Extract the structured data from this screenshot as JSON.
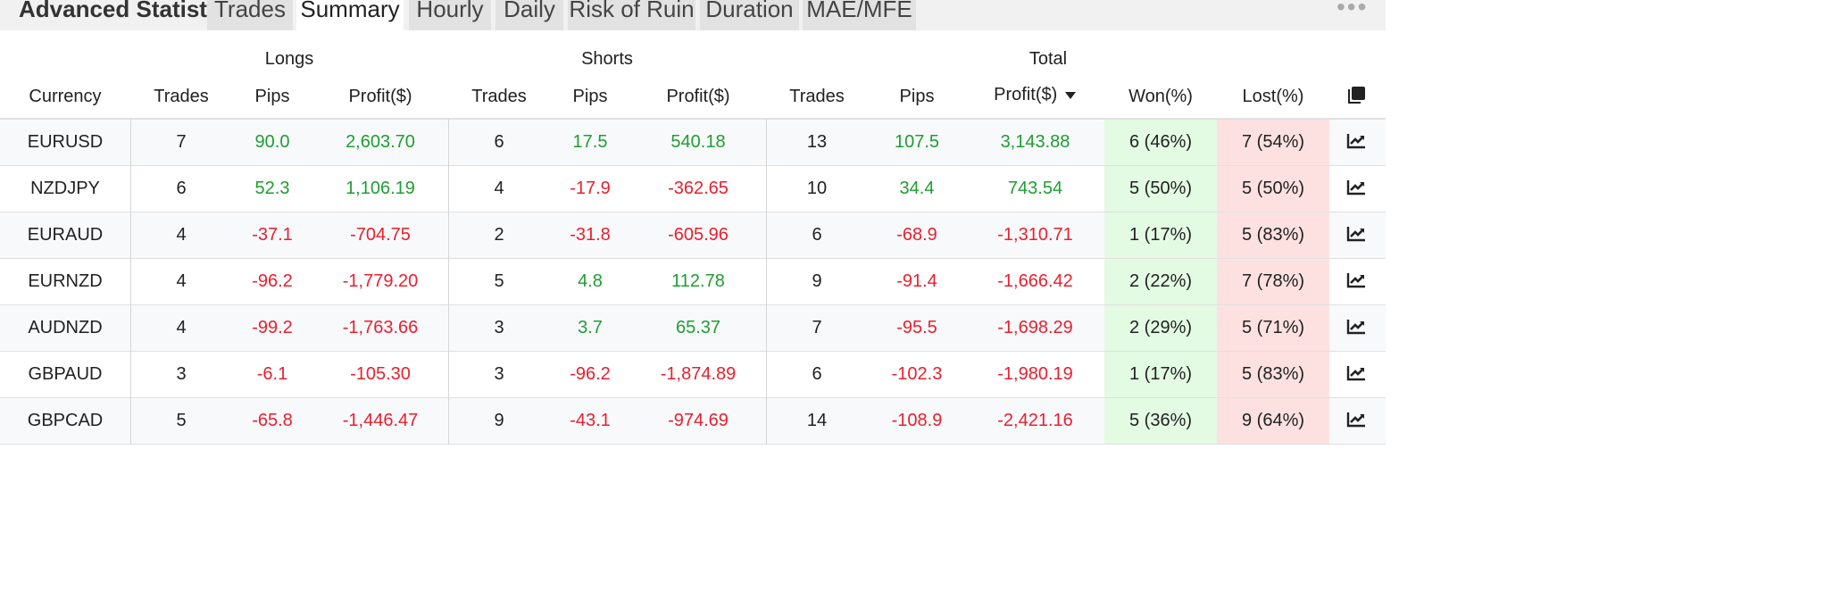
{
  "header": {
    "title": "Advanced Statistics",
    "tabs": [
      "Trades",
      "Summary",
      "Hourly",
      "Daily",
      "Risk of Ruin",
      "Duration",
      "MAE/MFE"
    ],
    "active_tab": "Summary",
    "more_icon": "more-dots-icon"
  },
  "table": {
    "groups": {
      "longs": "Longs",
      "shorts": "Shorts",
      "total": "Total"
    },
    "columns": {
      "currency": "Currency",
      "trades": "Trades",
      "pips": "Pips",
      "profit": "Profit($)",
      "won": "Won(%)",
      "lost": "Lost(%)"
    },
    "sort_icon": "sort-down-icon",
    "copy_icon": "copy-icon",
    "row_icon": "chart-icon",
    "rows": [
      {
        "currency": "EURUSD",
        "l_trades": "7",
        "l_pips": "90.0",
        "l_profit": "2,603.70",
        "s_trades": "6",
        "s_pips": "17.5",
        "s_profit": "540.18",
        "t_trades": "13",
        "t_pips": "107.5",
        "t_profit": "3,143.88",
        "won": "6 (46%)",
        "lost": "7 (54%)"
      },
      {
        "currency": "NZDJPY",
        "l_trades": "6",
        "l_pips": "52.3",
        "l_profit": "1,106.19",
        "s_trades": "4",
        "s_pips": "-17.9",
        "s_profit": "-362.65",
        "t_trades": "10",
        "t_pips": "34.4",
        "t_profit": "743.54",
        "won": "5 (50%)",
        "lost": "5 (50%)"
      },
      {
        "currency": "EURAUD",
        "l_trades": "4",
        "l_pips": "-37.1",
        "l_profit": "-704.75",
        "s_trades": "2",
        "s_pips": "-31.8",
        "s_profit": "-605.96",
        "t_trades": "6",
        "t_pips": "-68.9",
        "t_profit": "-1,310.71",
        "won": "1 (17%)",
        "lost": "5 (83%)"
      },
      {
        "currency": "EURNZD",
        "l_trades": "4",
        "l_pips": "-96.2",
        "l_profit": "-1,779.20",
        "s_trades": "5",
        "s_pips": "4.8",
        "s_profit": "112.78",
        "t_trades": "9",
        "t_pips": "-91.4",
        "t_profit": "-1,666.42",
        "won": "2 (22%)",
        "lost": "7 (78%)"
      },
      {
        "currency": "AUDNZD",
        "l_trades": "4",
        "l_pips": "-99.2",
        "l_profit": "-1,763.66",
        "s_trades": "3",
        "s_pips": "3.7",
        "s_profit": "65.37",
        "t_trades": "7",
        "t_pips": "-95.5",
        "t_profit": "-1,698.29",
        "won": "2 (29%)",
        "lost": "5 (71%)"
      },
      {
        "currency": "GBPAUD",
        "l_trades": "3",
        "l_pips": "-6.1",
        "l_profit": "-105.30",
        "s_trades": "3",
        "s_pips": "-96.2",
        "s_profit": "-1,874.89",
        "t_trades": "6",
        "t_pips": "-102.3",
        "t_profit": "-1,980.19",
        "won": "1 (17%)",
        "lost": "5 (83%)"
      },
      {
        "currency": "GBPCAD",
        "l_trades": "5",
        "l_pips": "-65.8",
        "l_profit": "-1,446.47",
        "s_trades": "9",
        "s_pips": "-43.1",
        "s_profit": "-974.69",
        "t_trades": "14",
        "t_pips": "-108.9",
        "t_profit": "-2,421.16",
        "won": "5 (36%)",
        "lost": "9 (64%)"
      }
    ]
  },
  "colors": {
    "positive": "#1e9e32",
    "negative": "#e8202e",
    "won_bg": "#e3fae3",
    "lost_bg": "#fde1e1"
  }
}
